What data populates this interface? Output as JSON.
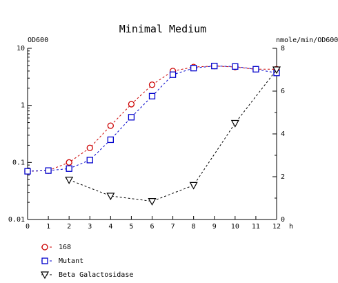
{
  "chart_data": {
    "type": "line",
    "title": "Minimal Medium",
    "left_axis": {
      "label": "OD600",
      "scale": "log",
      "range": [
        0.01,
        10
      ],
      "ticks": [
        "10",
        "1",
        "0.1",
        "0.01"
      ]
    },
    "right_axis": {
      "label": "nmole/min/OD600",
      "scale": "linear",
      "range": [
        0,
        8
      ],
      "ticks": [
        "8",
        "6",
        "4",
        "2",
        "0"
      ]
    },
    "x_axis": {
      "unit": "h",
      "range": [
        0,
        12
      ],
      "ticks": [
        "0",
        "1",
        "2",
        "3",
        "4",
        "5",
        "6",
        "7",
        "8",
        "9",
        "10",
        "11",
        "12"
      ]
    },
    "grid": false,
    "legend_position": "bottom-left",
    "series": [
      {
        "name": "168",
        "axis": "left",
        "color": "#cc0000",
        "marker": "circle",
        "x": [
          0,
          1,
          2,
          3,
          4,
          5,
          6,
          7,
          8,
          9,
          10,
          11,
          12
        ],
        "y": [
          0.07,
          0.072,
          0.1,
          0.18,
          0.44,
          1.05,
          2.3,
          4.0,
          4.7,
          4.9,
          4.7,
          4.3,
          4.3
        ]
      },
      {
        "name": "Mutant",
        "axis": "left",
        "color": "#0000cc",
        "marker": "square",
        "x": [
          0,
          1,
          2,
          3,
          4,
          5,
          6,
          7,
          8,
          9,
          10,
          11,
          12
        ],
        "y": [
          0.07,
          0.072,
          0.078,
          0.11,
          0.25,
          0.62,
          1.45,
          3.45,
          4.5,
          4.9,
          4.8,
          4.3,
          3.7
        ]
      },
      {
        "name": "Beta Galactosidase",
        "axis": "right",
        "color": "#000000",
        "marker": "triangle-down",
        "x": [
          2,
          4,
          6,
          8,
          10,
          12
        ],
        "y": [
          1.85,
          1.1,
          0.85,
          1.6,
          4.5,
          7.0
        ]
      }
    ]
  }
}
